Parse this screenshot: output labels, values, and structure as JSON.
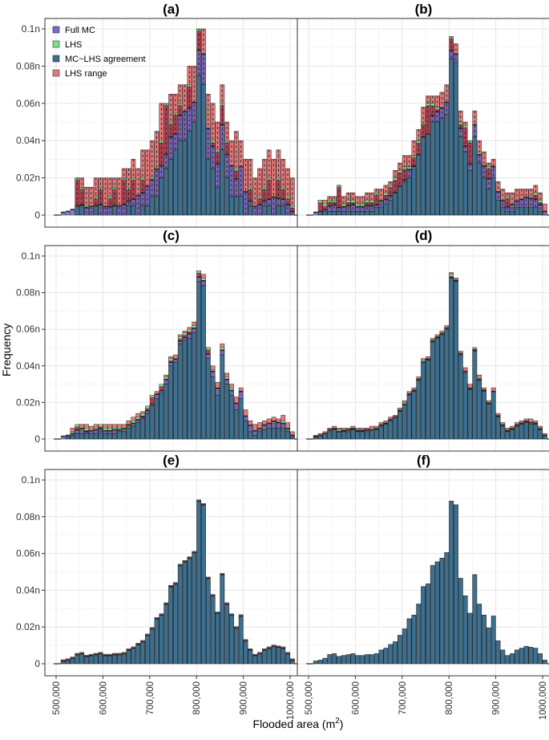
{
  "colors": {
    "full_mc": "#6f6fc9",
    "lhs": "#7fe08a",
    "agreement": "#3d6f8f",
    "lhs_range": "#e77a7a",
    "range_dark": "#9c2c43",
    "grid": "#e6e6e6",
    "frame": "#333333",
    "bar_edge": "#222222"
  },
  "chart_data": {
    "type": "bar",
    "layout": "3x2 facet grid of histograms",
    "xlabel_main": "Flooded area (m",
    "xlabel_sup": "2",
    "xlabel_close": ")",
    "ylabel": "Frequency",
    "xlim": [
      500000,
      1000000
    ],
    "ylim": [
      0,
      0.1
    ],
    "x_ticks": [
      500000,
      600000,
      700000,
      800000,
      900000,
      1000000
    ],
    "x_tick_labels": [
      "500,000",
      "600,000",
      "700,000",
      "800,000",
      "900,000",
      "1000,000"
    ],
    "y_ticks": [
      0,
      0.02,
      0.04,
      0.06,
      0.08,
      0.1
    ],
    "y_tick_labels": [
      "0",
      "0.02n",
      "0.04n",
      "0.06n",
      "0.08n",
      "0.1n"
    ],
    "legend": [
      {
        "key": "full_mc",
        "label": "Full MC"
      },
      {
        "key": "lhs",
        "label": "LHS"
      },
      {
        "key": "agreement",
        "label": "MC~LHS agreement"
      },
      {
        "key": "lhs_range",
        "label": "LHS range"
      }
    ],
    "bin_width": 10000,
    "bin_starts_from": 510000,
    "reference_distribution_full_mc": [
      0.0015,
      0.002,
      0.003,
      0.005,
      0.0055,
      0.004,
      0.0045,
      0.005,
      0.0055,
      0.0045,
      0.0045,
      0.005,
      0.005,
      0.0055,
      0.0075,
      0.0085,
      0.0105,
      0.012,
      0.0155,
      0.019,
      0.0245,
      0.0265,
      0.0325,
      0.042,
      0.0435,
      0.0535,
      0.0555,
      0.0575,
      0.0605,
      0.0885,
      0.0865,
      0.0465,
      0.037,
      0.0275,
      0.0485,
      0.0325,
      0.0265,
      0.0195,
      0.026,
      0.0125,
      0.0075,
      0.0045,
      0.0055,
      0.0075,
      0.0085,
      0.0095,
      0.009,
      0.0085,
      0.0055,
      0.002
    ],
    "panels": [
      {
        "id": "a",
        "title": "(a)",
        "has_legend": true,
        "lhs": [
          0,
          0,
          0,
          0.02,
          0.015,
          0.005,
          0.005,
          0.01,
          0.015,
          0.005,
          0.01,
          0.015,
          0.005,
          0.02,
          0.015,
          0.02,
          0.01,
          0.02,
          0.015,
          0.02,
          0.025,
          0.04,
          0.06,
          0.05,
          0.055,
          0.06,
          0.055,
          0.07,
          0.06,
          0.1,
          0.08,
          0.04,
          0.04,
          0.035,
          0.06,
          0.04,
          0.02,
          0.025,
          0.02,
          0.01,
          0.015,
          0.005,
          0.01,
          0.015,
          0.02,
          0.01,
          0.02,
          0.015,
          0.01,
          0.005
        ],
        "range_lo": [
          0,
          0,
          0,
          0.005,
          0.005,
          0.0,
          0.0,
          0.005,
          0.0,
          0.0,
          0.0,
          0.005,
          0.0,
          0.0,
          0.005,
          0.005,
          0.0,
          0.005,
          0.005,
          0.01,
          0.01,
          0.02,
          0.025,
          0.03,
          0.035,
          0.04,
          0.04,
          0.045,
          0.05,
          0.075,
          0.07,
          0.03,
          0.025,
          0.015,
          0.035,
          0.02,
          0.01,
          0.01,
          0.01,
          0.0,
          0.005,
          0.0,
          0.0,
          0.005,
          0.005,
          0.0,
          0.005,
          0.005,
          0.0,
          0.0
        ],
        "range_hi": [
          0,
          0,
          0,
          0.02,
          0.02,
          0.015,
          0.015,
          0.02,
          0.02,
          0.02,
          0.02,
          0.02,
          0.02,
          0.025,
          0.025,
          0.03,
          0.025,
          0.035,
          0.035,
          0.04,
          0.045,
          0.06,
          0.06,
          0.065,
          0.065,
          0.07,
          0.07,
          0.08,
          0.08,
          0.1,
          0.1,
          0.065,
          0.06,
          0.05,
          0.07,
          0.05,
          0.04,
          0.045,
          0.04,
          0.03,
          0.03,
          0.02,
          0.025,
          0.03,
          0.035,
          0.03,
          0.035,
          0.03,
          0.025,
          0.02
        ]
      },
      {
        "id": "b",
        "title": "(b)",
        "has_legend": false,
        "lhs": [
          0.0,
          0.008,
          0.006,
          0.008,
          0.008,
          0.016,
          0.006,
          0.008,
          0.008,
          0.006,
          0.006,
          0.008,
          0.008,
          0.012,
          0.008,
          0.012,
          0.016,
          0.02,
          0.024,
          0.026,
          0.026,
          0.032,
          0.04,
          0.05,
          0.06,
          0.06,
          0.058,
          0.048,
          0.06,
          0.096,
          0.085,
          0.05,
          0.048,
          0.04,
          0.042,
          0.034,
          0.024,
          0.026,
          0.026,
          0.012,
          0.008,
          0.01,
          0.006,
          0.006,
          0.008,
          0.008,
          0.008,
          0.012,
          0.008,
          0.002
        ],
        "range_lo": [
          0.0,
          0.002,
          0.002,
          0.002,
          0.002,
          0.002,
          0.002,
          0.002,
          0.002,
          0.002,
          0.002,
          0.002,
          0.002,
          0.004,
          0.004,
          0.006,
          0.008,
          0.012,
          0.016,
          0.018,
          0.02,
          0.026,
          0.034,
          0.044,
          0.05,
          0.05,
          0.05,
          0.052,
          0.054,
          0.084,
          0.082,
          0.042,
          0.034,
          0.024,
          0.042,
          0.028,
          0.02,
          0.014,
          0.02,
          0.008,
          0.004,
          0.002,
          0.002,
          0.004,
          0.004,
          0.004,
          0.004,
          0.004,
          0.002,
          0.0
        ],
        "range_hi": [
          0.0,
          0.008,
          0.008,
          0.01,
          0.01,
          0.016,
          0.01,
          0.012,
          0.012,
          0.01,
          0.01,
          0.012,
          0.012,
          0.014,
          0.014,
          0.016,
          0.018,
          0.024,
          0.028,
          0.032,
          0.032,
          0.04,
          0.046,
          0.058,
          0.064,
          0.064,
          0.064,
          0.066,
          0.07,
          0.096,
          0.092,
          0.056,
          0.05,
          0.04,
          0.056,
          0.04,
          0.034,
          0.028,
          0.03,
          0.018,
          0.014,
          0.012,
          0.012,
          0.014,
          0.014,
          0.014,
          0.014,
          0.016,
          0.012,
          0.006
        ]
      },
      {
        "id": "c",
        "title": "(c)",
        "has_legend": false,
        "lhs": [
          0.0,
          0.002,
          0.004,
          0.008,
          0.006,
          0.006,
          0.004,
          0.006,
          0.008,
          0.006,
          0.006,
          0.006,
          0.006,
          0.006,
          0.008,
          0.01,
          0.012,
          0.014,
          0.018,
          0.024,
          0.024,
          0.03,
          0.034,
          0.044,
          0.044,
          0.056,
          0.058,
          0.06,
          0.062,
          0.092,
          0.088,
          0.05,
          0.038,
          0.028,
          0.05,
          0.034,
          0.028,
          0.018,
          0.022,
          0.012,
          0.006,
          0.004,
          0.006,
          0.008,
          0.008,
          0.01,
          0.008,
          0.01,
          0.006,
          0.002
        ],
        "range_lo": [
          0.0,
          0.001,
          0.002,
          0.003,
          0.003,
          0.003,
          0.003,
          0.003,
          0.004,
          0.003,
          0.003,
          0.003,
          0.004,
          0.004,
          0.006,
          0.007,
          0.009,
          0.011,
          0.014,
          0.018,
          0.022,
          0.025,
          0.03,
          0.04,
          0.042,
          0.052,
          0.054,
          0.055,
          0.058,
          0.086,
          0.084,
          0.044,
          0.034,
          0.024,
          0.046,
          0.03,
          0.024,
          0.016,
          0.022,
          0.01,
          0.004,
          0.002,
          0.004,
          0.005,
          0.006,
          0.006,
          0.006,
          0.006,
          0.004,
          0.001
        ],
        "range_hi": [
          0.0,
          0.002,
          0.006,
          0.008,
          0.008,
          0.008,
          0.007,
          0.008,
          0.008,
          0.008,
          0.008,
          0.008,
          0.008,
          0.008,
          0.01,
          0.012,
          0.014,
          0.015,
          0.018,
          0.024,
          0.026,
          0.029,
          0.035,
          0.045,
          0.046,
          0.057,
          0.059,
          0.061,
          0.064,
          0.092,
          0.09,
          0.05,
          0.04,
          0.031,
          0.052,
          0.036,
          0.03,
          0.023,
          0.028,
          0.016,
          0.01,
          0.008,
          0.009,
          0.01,
          0.011,
          0.012,
          0.011,
          0.013,
          0.009,
          0.004
        ]
      },
      {
        "id": "d",
        "title": "(d)",
        "has_legend": false,
        "lhs": [
          0.001,
          0.002,
          0.003,
          0.005,
          0.006,
          0.005,
          0.005,
          0.005,
          0.006,
          0.005,
          0.005,
          0.005,
          0.005,
          0.006,
          0.008,
          0.009,
          0.011,
          0.012,
          0.016,
          0.02,
          0.025,
          0.027,
          0.033,
          0.043,
          0.044,
          0.054,
          0.056,
          0.058,
          0.061,
          0.09,
          0.087,
          0.047,
          0.037,
          0.028,
          0.049,
          0.033,
          0.027,
          0.02,
          0.026,
          0.013,
          0.008,
          0.005,
          0.006,
          0.008,
          0.009,
          0.01,
          0.009,
          0.009,
          0.006,
          0.002
        ],
        "range_lo": [
          0.001,
          0.002,
          0.003,
          0.004,
          0.005,
          0.004,
          0.004,
          0.004,
          0.005,
          0.004,
          0.004,
          0.004,
          0.005,
          0.005,
          0.007,
          0.008,
          0.01,
          0.012,
          0.015,
          0.019,
          0.024,
          0.026,
          0.032,
          0.042,
          0.043,
          0.053,
          0.055,
          0.057,
          0.06,
          0.088,
          0.086,
          0.046,
          0.036,
          0.027,
          0.048,
          0.032,
          0.026,
          0.019,
          0.026,
          0.012,
          0.007,
          0.004,
          0.005,
          0.007,
          0.008,
          0.009,
          0.008,
          0.008,
          0.005,
          0.002
        ],
        "range_hi": [
          0.002,
          0.003,
          0.004,
          0.006,
          0.007,
          0.006,
          0.006,
          0.006,
          0.007,
          0.006,
          0.006,
          0.006,
          0.007,
          0.007,
          0.009,
          0.01,
          0.012,
          0.013,
          0.017,
          0.021,
          0.026,
          0.028,
          0.034,
          0.044,
          0.045,
          0.055,
          0.057,
          0.059,
          0.062,
          0.091,
          0.088,
          0.048,
          0.039,
          0.03,
          0.05,
          0.035,
          0.028,
          0.021,
          0.028,
          0.014,
          0.009,
          0.006,
          0.007,
          0.009,
          0.01,
          0.011,
          0.011,
          0.01,
          0.007,
          0.003
        ]
      },
      {
        "id": "e",
        "title": "(e)",
        "has_legend": false,
        "lhs": [
          0.0015,
          0.002,
          0.003,
          0.005,
          0.0055,
          0.004,
          0.0045,
          0.005,
          0.0055,
          0.0045,
          0.0045,
          0.005,
          0.005,
          0.0055,
          0.0075,
          0.0085,
          0.0105,
          0.012,
          0.0155,
          0.019,
          0.0245,
          0.0265,
          0.0325,
          0.042,
          0.0435,
          0.0535,
          0.0555,
          0.0575,
          0.0605,
          0.0885,
          0.0865,
          0.0465,
          0.037,
          0.0275,
          0.0485,
          0.0325,
          0.0265,
          0.0195,
          0.026,
          0.0125,
          0.0075,
          0.0045,
          0.0055,
          0.0075,
          0.0085,
          0.0095,
          0.009,
          0.0085,
          0.0055,
          0.002
        ],
        "range_lo": [
          0.0015,
          0.002,
          0.003,
          0.005,
          0.0055,
          0.004,
          0.0045,
          0.005,
          0.0055,
          0.0045,
          0.0045,
          0.005,
          0.005,
          0.0055,
          0.0075,
          0.0085,
          0.0105,
          0.012,
          0.0155,
          0.019,
          0.0245,
          0.0265,
          0.0325,
          0.042,
          0.0435,
          0.0535,
          0.0555,
          0.0575,
          0.0605,
          0.0885,
          0.0865,
          0.0465,
          0.037,
          0.0275,
          0.0485,
          0.0325,
          0.0265,
          0.0195,
          0.026,
          0.0125,
          0.0075,
          0.0045,
          0.0055,
          0.0075,
          0.0085,
          0.0095,
          0.009,
          0.0085,
          0.0055,
          0.002
        ],
        "range_hi": [
          0.0022,
          0.0027,
          0.0037,
          0.0057,
          0.0062,
          0.0047,
          0.0052,
          0.0057,
          0.0062,
          0.0052,
          0.0052,
          0.0057,
          0.0057,
          0.0062,
          0.0082,
          0.0092,
          0.0112,
          0.0127,
          0.0162,
          0.0197,
          0.0252,
          0.0272,
          0.0332,
          0.0427,
          0.0442,
          0.0542,
          0.0562,
          0.0582,
          0.0612,
          0.0892,
          0.0872,
          0.0472,
          0.0377,
          0.0282,
          0.0492,
          0.0332,
          0.0272,
          0.0202,
          0.0267,
          0.0132,
          0.0082,
          0.0052,
          0.0062,
          0.0082,
          0.0092,
          0.0102,
          0.0097,
          0.0092,
          0.0062,
          0.0027
        ]
      },
      {
        "id": "f",
        "title": "(f)",
        "has_legend": false,
        "lhs": [
          0.0015,
          0.002,
          0.003,
          0.005,
          0.0055,
          0.004,
          0.0045,
          0.005,
          0.0055,
          0.0045,
          0.0045,
          0.005,
          0.005,
          0.0055,
          0.0075,
          0.0085,
          0.0105,
          0.012,
          0.0155,
          0.019,
          0.0245,
          0.0265,
          0.0325,
          0.042,
          0.0435,
          0.0535,
          0.0555,
          0.0575,
          0.0605,
          0.0885,
          0.0865,
          0.0465,
          0.037,
          0.0275,
          0.0485,
          0.0325,
          0.0265,
          0.0195,
          0.026,
          0.0125,
          0.0075,
          0.0045,
          0.0055,
          0.0075,
          0.0085,
          0.0095,
          0.009,
          0.0085,
          0.0055,
          0.002
        ],
        "range_lo": [
          0.0015,
          0.002,
          0.003,
          0.005,
          0.0055,
          0.004,
          0.0045,
          0.005,
          0.0055,
          0.0045,
          0.0045,
          0.005,
          0.005,
          0.0055,
          0.0075,
          0.0085,
          0.0105,
          0.012,
          0.0155,
          0.019,
          0.0245,
          0.0265,
          0.0325,
          0.042,
          0.0435,
          0.0535,
          0.0555,
          0.0575,
          0.0605,
          0.0885,
          0.0865,
          0.0465,
          0.037,
          0.0275,
          0.0485,
          0.0325,
          0.0265,
          0.0195,
          0.026,
          0.0125,
          0.0075,
          0.0045,
          0.0055,
          0.0075,
          0.0085,
          0.0095,
          0.009,
          0.0085,
          0.0055,
          0.002
        ],
        "range_hi": [
          0.0015,
          0.002,
          0.003,
          0.005,
          0.0055,
          0.004,
          0.0045,
          0.005,
          0.0055,
          0.0045,
          0.0045,
          0.005,
          0.005,
          0.0055,
          0.0075,
          0.0085,
          0.0105,
          0.012,
          0.0155,
          0.019,
          0.0245,
          0.0265,
          0.0325,
          0.042,
          0.0435,
          0.0535,
          0.0555,
          0.0575,
          0.0605,
          0.0885,
          0.0865,
          0.0465,
          0.037,
          0.0275,
          0.0485,
          0.0325,
          0.0265,
          0.0195,
          0.026,
          0.0125,
          0.0075,
          0.0045,
          0.0055,
          0.0075,
          0.0085,
          0.0095,
          0.009,
          0.0085,
          0.0055,
          0.002
        ]
      }
    ]
  }
}
